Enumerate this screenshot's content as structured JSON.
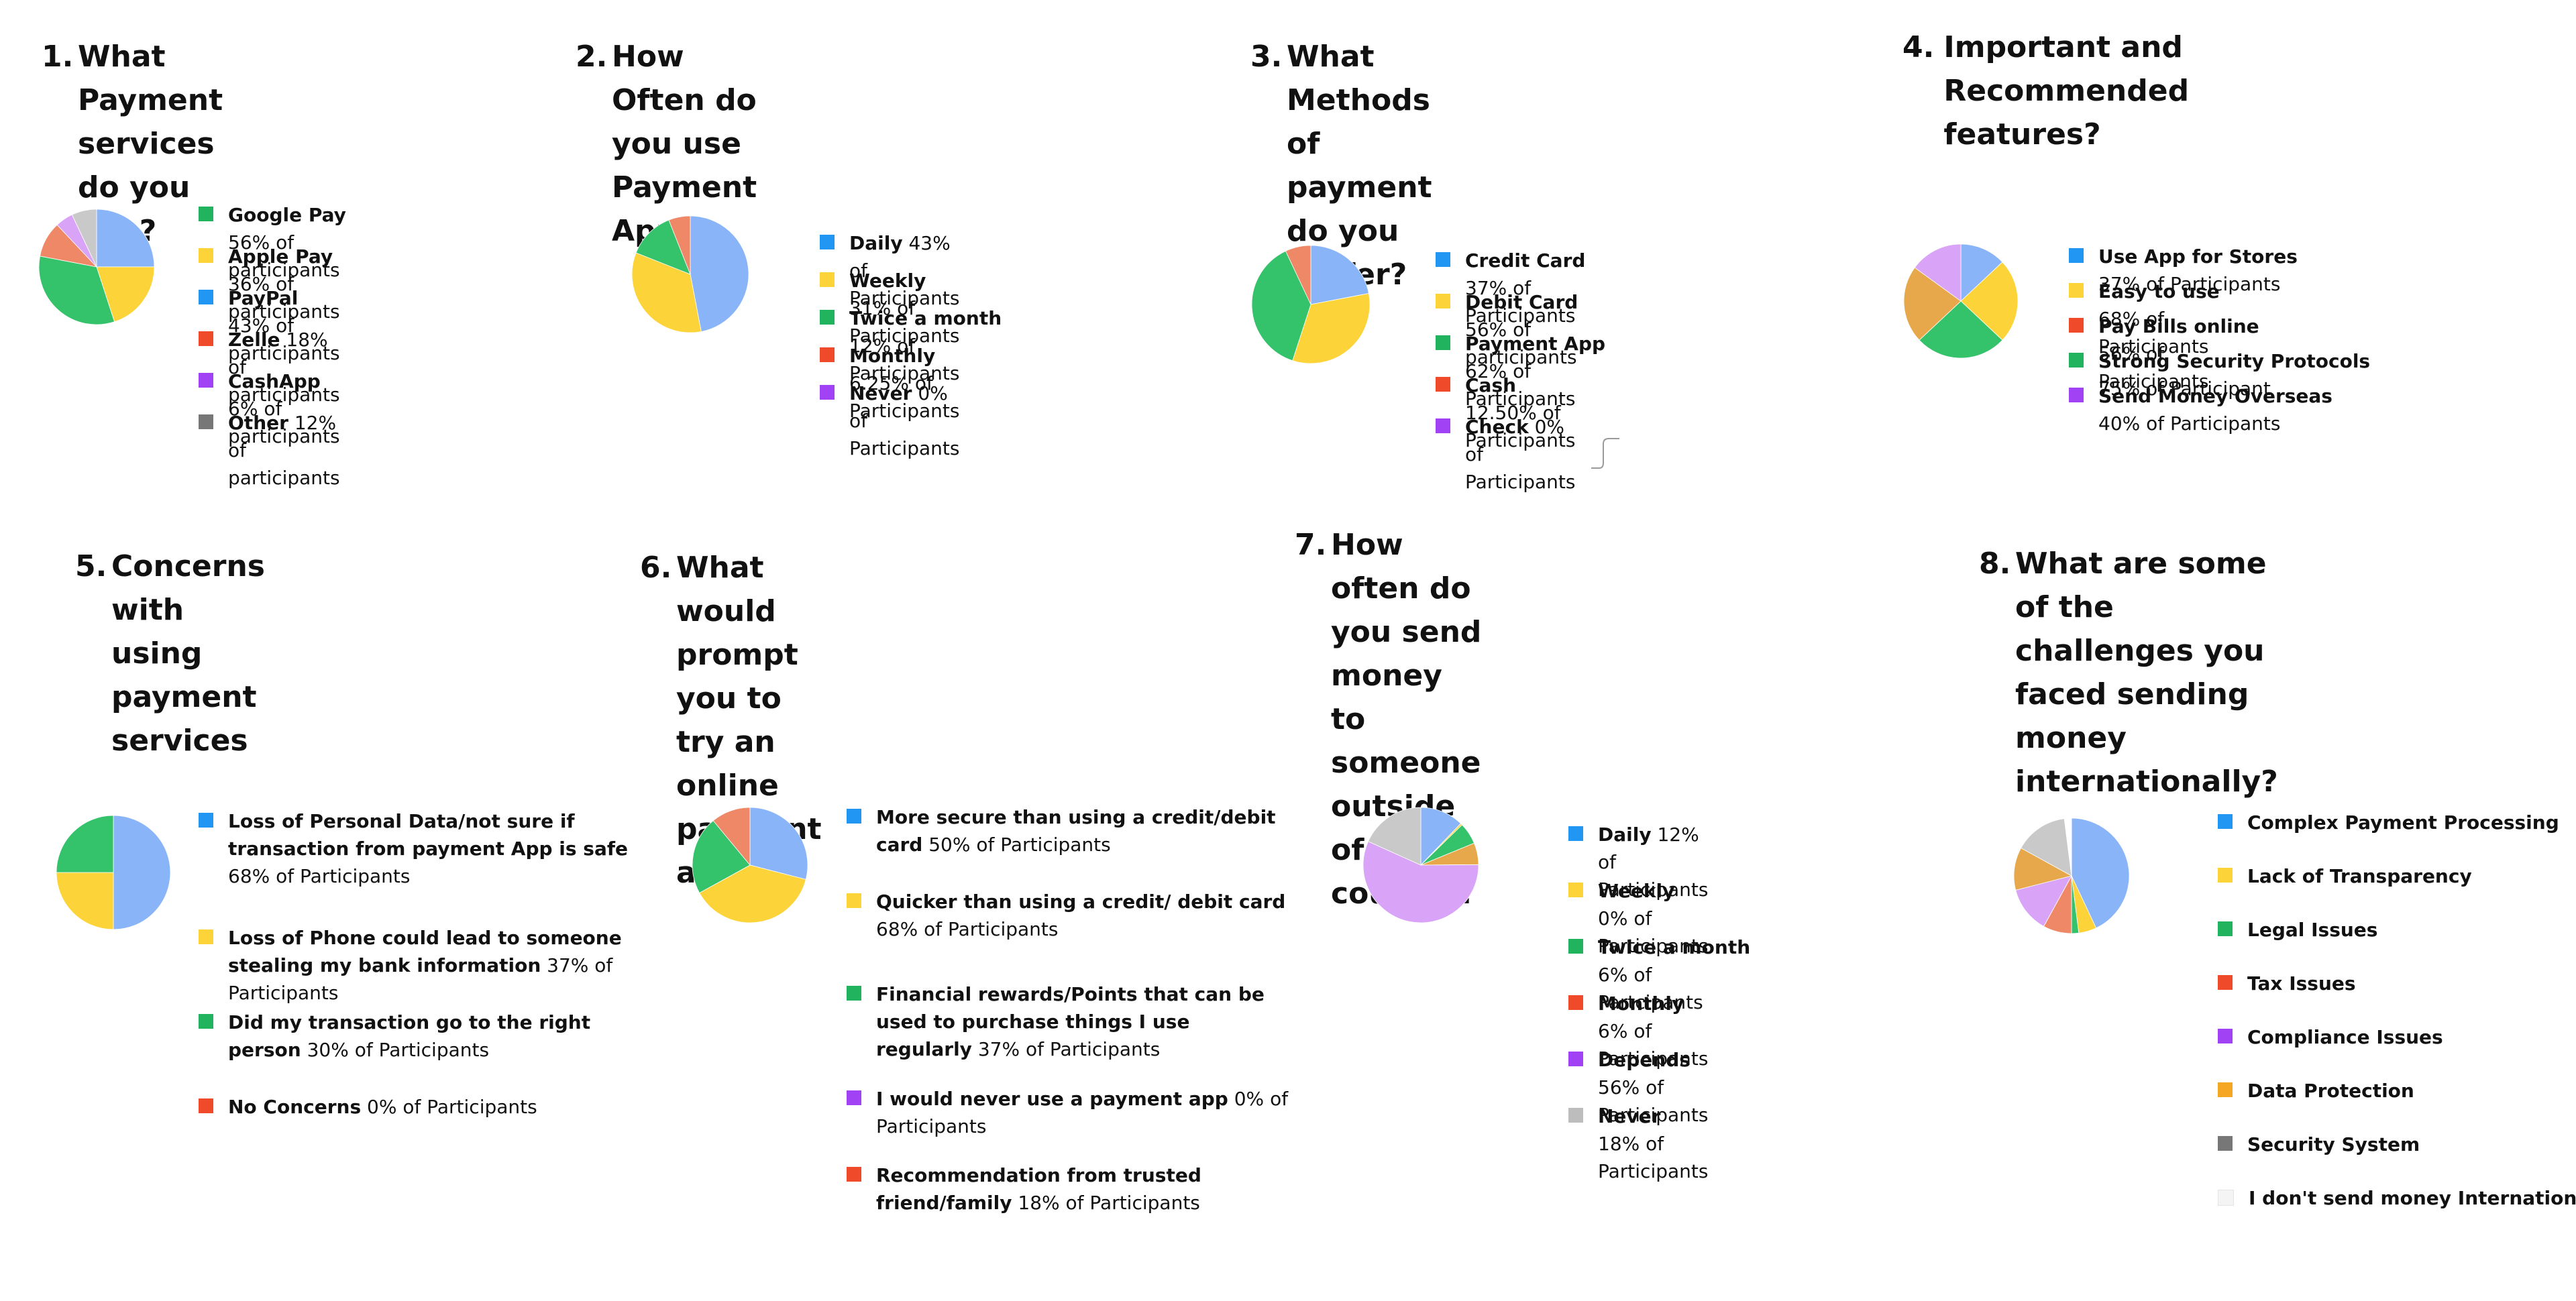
{
  "colors": {
    "blue": "#8ab4f8",
    "yellow": "#fdd33a",
    "green": "#34c26a",
    "red": "#ee8866",
    "purple": "#d9a4f7",
    "gray": "#c9c9c9",
    "orange": "#e6a84a",
    "swatch_blue": "#2196f3",
    "swatch_yellow": "#fdd33a",
    "swatch_green": "#22b35f",
    "swatch_red": "#ef4b2b",
    "swatch_purple": "#a142f4",
    "swatch_gray": "#777777",
    "swatch_orange": "#f5a623",
    "swatch_lightgray": "#bdbdbd",
    "swatch_white": "#f4f4f4"
  },
  "chart_data": [
    {
      "type": "pie",
      "number": "1.",
      "title": "What Payment services do you Use?",
      "legend": [
        {
          "name": "Google Pay",
          "text": " 56% of participants",
          "swatch": "swatch_green"
        },
        {
          "name": "Apple Pay",
          "text": "  36% of participants",
          "swatch": "swatch_yellow"
        },
        {
          "name": "PayPal",
          "text": " 43% of participants",
          "swatch": "swatch_blue"
        },
        {
          "name": "Zelle",
          "text": " 18% of participants",
          "swatch": "swatch_red"
        },
        {
          "name": "CashApp",
          "text": " 6% of participants",
          "swatch": "swatch_purple"
        },
        {
          "name": "Other",
          "text": " 12% of participants",
          "swatch": "swatch_gray"
        }
      ],
      "slices": [
        {
          "color": "blue",
          "value": 25
        },
        {
          "color": "yellow",
          "value": 20
        },
        {
          "color": "green",
          "value": 33
        },
        {
          "color": "red",
          "value": 10
        },
        {
          "color": "purple",
          "value": 5
        },
        {
          "color": "gray",
          "value": 7
        }
      ]
    },
    {
      "type": "pie",
      "number": "2.",
      "title": "How Often do you use Payment Apps?",
      "legend": [
        {
          "name": "Daily",
          "text": " 43% of Participants",
          "swatch": "swatch_blue"
        },
        {
          "name": "Weekly",
          "text": " 31% of Participants",
          "swatch": "swatch_yellow"
        },
        {
          "name": "Twice a month",
          "text": " 12% of Participants",
          "swatch": "swatch_green"
        },
        {
          "name": "Monthly",
          "text": " 6.25% of Participants",
          "swatch": "swatch_red"
        },
        {
          "name": "Never",
          "text": " 0% of Participants",
          "swatch": "swatch_purple"
        }
      ],
      "slices": [
        {
          "color": "blue",
          "value": 47
        },
        {
          "color": "yellow",
          "value": 34
        },
        {
          "color": "green",
          "value": 13
        },
        {
          "color": "red",
          "value": 6
        }
      ]
    },
    {
      "type": "pie",
      "number": "3.",
      "title": "What Methods of payment do you prefer?",
      "legend": [
        {
          "name": "Credit Card",
          "text": " 37% of Participants",
          "swatch": "swatch_blue"
        },
        {
          "name": "Debit Card",
          "text": " 56% of  participants",
          "swatch": "swatch_yellow"
        },
        {
          "name": "Payment App",
          "text": " 62% of Participants",
          "swatch": "swatch_green"
        },
        {
          "name": "Cash",
          "text": "  12.50% of Participants",
          "swatch": "swatch_red"
        },
        {
          "name": "Check",
          "text": " 0% of Participants",
          "swatch": "swatch_purple"
        }
      ],
      "slices": [
        {
          "color": "blue",
          "value": 22
        },
        {
          "color": "yellow",
          "value": 33
        },
        {
          "color": "green",
          "value": 38
        },
        {
          "color": "red",
          "value": 7
        }
      ]
    },
    {
      "type": "pie",
      "number": "4.",
      "title": "Important and Recommended features?",
      "legend": [
        {
          "name": "Use App for Stores",
          "text": " 37% of Participants",
          "swatch": "swatch_blue"
        },
        {
          "name": "Easy to use",
          "text": " 68% of Participants",
          "swatch": "swatch_yellow"
        },
        {
          "name": "Pay Bills online",
          "text": " 56% of Participants",
          "swatch": "swatch_red"
        },
        {
          "name": "Strong Security Protocols",
          "text": " 75% of Participant",
          "swatch": "swatch_green"
        },
        {
          "name": "Send Money Overseas",
          "text": " 40% of Participants",
          "swatch": "swatch_purple"
        }
      ],
      "slices": [
        {
          "color": "blue",
          "value": 13
        },
        {
          "color": "yellow",
          "value": 24
        },
        {
          "color": "green",
          "value": 26
        },
        {
          "color": "orange",
          "value": 22
        },
        {
          "color": "purple",
          "value": 15
        }
      ]
    },
    {
      "type": "pie",
      "number": "5.",
      "title": "Concerns with using payment services",
      "legend": [
        {
          "name": "Loss of Personal Data/not sure if transaction  from payment App is safe",
          "text": "  68% of Participants",
          "swatch": "swatch_blue"
        },
        {
          "name": "Loss of Phone could lead to someone stealing my bank information",
          "text": " 37% of Participants",
          "swatch": "swatch_yellow"
        },
        {
          "name": "Did my transaction go to the right person",
          "text": " 30% of Participants",
          "swatch": "swatch_green"
        },
        {
          "name": "No Concerns",
          "text": " 0% of Participants",
          "swatch": "swatch_red"
        }
      ],
      "slices": [
        {
          "color": "blue",
          "value": 50
        },
        {
          "color": "yellow",
          "value": 25
        },
        {
          "color": "green",
          "value": 25
        }
      ]
    },
    {
      "type": "pie",
      "number": "6.",
      "title": "What would prompt you to try an online payment app?",
      "legend": [
        {
          "name": "More secure than using a credit/debit card",
          "text": " 50% of Participants",
          "swatch": "swatch_blue"
        },
        {
          "name": "Quicker than using a credit/ debit card",
          "text": " 68% of Participants",
          "swatch": "swatch_yellow"
        },
        {
          "name": "Financial rewards/Points that can be used  to purchase things I use regularly",
          "text": " 37% of Participants",
          "swatch": "swatch_green"
        },
        {
          "name": "I would never use a payment app",
          "text": " 0% of Participants",
          "swatch": "swatch_purple"
        },
        {
          "name": "Recommendation from trusted friend/family",
          "text": " 18% of Participants",
          "swatch": "swatch_red"
        }
      ],
      "slices": [
        {
          "color": "blue",
          "value": 29
        },
        {
          "color": "yellow",
          "value": 38
        },
        {
          "color": "green",
          "value": 22
        },
        {
          "color": "red",
          "value": 11
        }
      ]
    },
    {
      "type": "pie",
      "number": "7.",
      "title": "How often do you send money to someone outside of the country?",
      "legend": [
        {
          "name": "Daily",
          "text": " 12% of Participants",
          "swatch": "swatch_blue"
        },
        {
          "name": "Weekly",
          "text": " 0% of Participants",
          "swatch": "swatch_yellow"
        },
        {
          "name": "Twice a month",
          "text": " 6% of Partcipants",
          "swatch": "swatch_green"
        },
        {
          "name": "Monthly",
          "text": " 6% of Participants",
          "swatch": "swatch_red"
        },
        {
          "name": "Depends",
          "text": " 56% of Participants",
          "swatch": "swatch_purple"
        },
        {
          "name": "Never",
          "text": " 18% of Participants",
          "swatch": "swatch_lightgray"
        }
      ],
      "slices": [
        {
          "color": "blue",
          "value": 12
        },
        {
          "color": "yellow",
          "value": 0.5
        },
        {
          "color": "green",
          "value": 6
        },
        {
          "color": "orange",
          "value": 6
        },
        {
          "color": "purple",
          "value": 56
        },
        {
          "color": "gray",
          "value": 18
        }
      ]
    },
    {
      "type": "pie",
      "number": "8.",
      "title": "What are some of the challenges you faced sending money internationally?",
      "legend": [
        {
          "name": "Complex Payment Processing",
          "text": "",
          "swatch": "swatch_blue"
        },
        {
          "name": "Lack of Transparency",
          "text": "",
          "swatch": "swatch_yellow"
        },
        {
          "name": "Legal Issues",
          "text": "",
          "swatch": "swatch_green"
        },
        {
          "name": "Tax Issues",
          "text": "",
          "swatch": "swatch_red"
        },
        {
          "name": "Compliance Issues",
          "text": "",
          "swatch": "swatch_purple"
        },
        {
          "name": "Data Protection",
          "text": "",
          "swatch": "swatch_orange"
        },
        {
          "name": "Security System",
          "text": "",
          "swatch": "swatch_gray"
        },
        {
          "name": "I don't send money Internationally",
          "text": "",
          "swatch": "swatch_white"
        }
      ],
      "slices": [
        {
          "color": "blue",
          "value": 43
        },
        {
          "color": "yellow",
          "value": 5
        },
        {
          "color": "green",
          "value": 2
        },
        {
          "color": "red",
          "value": 8
        },
        {
          "color": "purple",
          "value": 13
        },
        {
          "color": "orange",
          "value": 12
        },
        {
          "color": "gray",
          "value": 15
        },
        {
          "color": "white",
          "value": 2
        }
      ]
    }
  ]
}
